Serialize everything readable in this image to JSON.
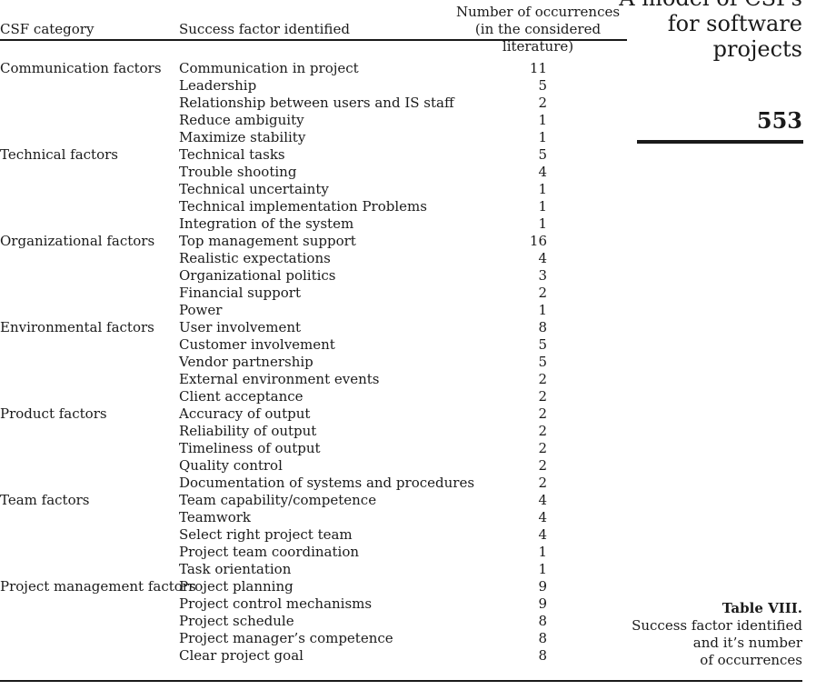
{
  "table": {
    "headers": {
      "category": "CSF category",
      "factor": "Success factor identified",
      "count_line1": "Number of occurrences",
      "count_line2": "(in the considered literature)"
    },
    "rows": [
      {
        "category": "Communication factors",
        "factor": "Communication in project",
        "count": "11"
      },
      {
        "category": "",
        "factor": "Leadership",
        "count": "5"
      },
      {
        "category": "",
        "factor": "Relationship between users and IS staff",
        "count": "2"
      },
      {
        "category": "",
        "factor": "Reduce ambiguity",
        "count": "1"
      },
      {
        "category": "",
        "factor": "Maximize stability",
        "count": "1"
      },
      {
        "category": "Technical factors",
        "factor": "Technical tasks",
        "count": "5"
      },
      {
        "category": "",
        "factor": "Trouble shooting",
        "count": "4"
      },
      {
        "category": "",
        "factor": "Technical uncertainty",
        "count": "1"
      },
      {
        "category": "",
        "factor": "Technical implementation Problems",
        "count": "1"
      },
      {
        "category": "",
        "factor": "Integration of the system",
        "count": "1"
      },
      {
        "category": "Organizational factors",
        "factor": "Top management support",
        "count": "16"
      },
      {
        "category": "",
        "factor": "Realistic expectations",
        "count": "4"
      },
      {
        "category": "",
        "factor": "Organizational politics",
        "count": "3"
      },
      {
        "category": "",
        "factor": "Financial support",
        "count": "2"
      },
      {
        "category": "",
        "factor": "Power",
        "count": "1"
      },
      {
        "category": "Environmental factors",
        "factor": "User involvement",
        "count": "8"
      },
      {
        "category": "",
        "factor": "Customer involvement",
        "count": "5"
      },
      {
        "category": "",
        "factor": "Vendor partnership",
        "count": "5"
      },
      {
        "category": "",
        "factor": "External environment events",
        "count": "2"
      },
      {
        "category": "",
        "factor": "Client acceptance",
        "count": "2"
      },
      {
        "category": "Product factors",
        "factor": "Accuracy of output",
        "count": "2"
      },
      {
        "category": "",
        "factor": "Reliability of output",
        "count": "2"
      },
      {
        "category": "",
        "factor": "Timeliness of output",
        "count": "2"
      },
      {
        "category": "",
        "factor": "Quality control",
        "count": "2"
      },
      {
        "category": "",
        "factor": "Documentation of systems and procedures",
        "count": "2"
      },
      {
        "category": "Team factors",
        "factor": "Team capability/competence",
        "count": "4"
      },
      {
        "category": "",
        "factor": "Teamwork",
        "count": "4"
      },
      {
        "category": "",
        "factor": "Select right project team",
        "count": "4"
      },
      {
        "category": "",
        "factor": "Project team coordination",
        "count": "1"
      },
      {
        "category": "",
        "factor": "Task orientation",
        "count": "1"
      },
      {
        "category": "Project management factors",
        "factor": "Project planning",
        "count": "9"
      },
      {
        "category": "",
        "factor": "Project control mechanisms",
        "count": "9"
      },
      {
        "category": "",
        "factor": "Project schedule",
        "count": "8"
      },
      {
        "category": "",
        "factor": "Project manager’s competence",
        "count": "8"
      },
      {
        "category": "",
        "factor": "Clear project goal",
        "count": "8"
      }
    ]
  },
  "sidebar": {
    "title_lines": [
      "A model of CSFs",
      "for software",
      "projects"
    ],
    "page_number": "553"
  },
  "caption": {
    "title": "Table VIII.",
    "lines": [
      "Success factor identified",
      "and it’s number",
      "of occurrences"
    ]
  }
}
